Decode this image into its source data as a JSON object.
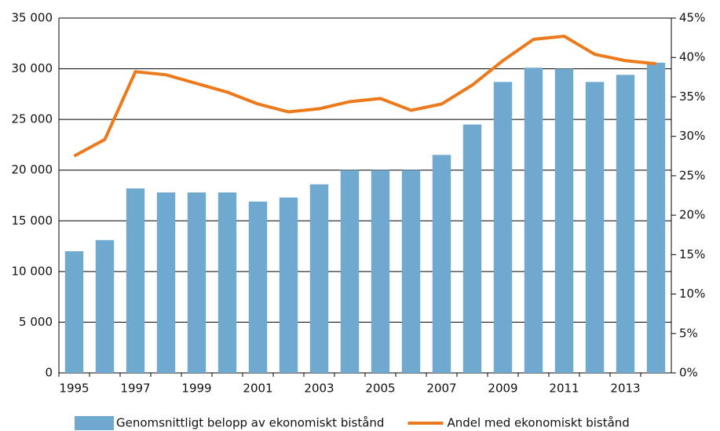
{
  "chart_data": {
    "type": "bar-line",
    "categories": [
      "1995",
      null,
      "1997",
      null,
      "1999",
      null,
      "2001",
      null,
      "2003",
      null,
      "2005",
      null,
      "2007",
      null,
      "2009",
      null,
      "2011",
      null,
      "2013",
      null
    ],
    "series": [
      {
        "name": "Genomsnittligt belopp av ekonomiskt bistånd",
        "type": "bar",
        "color": "#70a9cf",
        "values": [
          12000,
          13100,
          18200,
          17800,
          17800,
          17800,
          16900,
          17300,
          18600,
          20000,
          20000,
          20000,
          21500,
          24500,
          28700,
          30100,
          30000,
          28700,
          29400,
          30600
        ]
      },
      {
        "name": "Andel med ekonomiskt bistånd",
        "type": "line",
        "axis": "y2",
        "color": "#ec7a1c",
        "values": [
          27.5,
          29.6,
          38.2,
          37.8,
          36.7,
          35.6,
          34.1,
          33.1,
          33.5,
          34.4,
          34.8,
          33.3,
          34.1,
          36.5,
          39.6,
          42.3,
          42.7,
          40.4,
          39.6,
          39.2
        ]
      }
    ],
    "ylim": [
      0,
      35000
    ],
    "yticks": [
      {
        "value": 0,
        "label": "0"
      },
      {
        "value": 5000,
        "label": "5 000"
      },
      {
        "value": 10000,
        "label": "10 000"
      },
      {
        "value": 15000,
        "label": "15 000"
      },
      {
        "value": 20000,
        "label": "20 000"
      },
      {
        "value": 25000,
        "label": "25 000"
      },
      {
        "value": 30000,
        "label": "30 000"
      },
      {
        "value": 35000,
        "label": "35 000"
      }
    ],
    "y2lim": [
      0,
      45
    ],
    "y2ticks": [
      {
        "value": 0,
        "label": "0%"
      },
      {
        "value": 5,
        "label": "5%"
      },
      {
        "value": 10,
        "label": "10%"
      },
      {
        "value": 15,
        "label": "15%"
      },
      {
        "value": 20,
        "label": "20%"
      },
      {
        "value": 25,
        "label": "25%"
      },
      {
        "value": 30,
        "label": "30%"
      },
      {
        "value": 35,
        "label": "35%"
      },
      {
        "value": 40,
        "label": "40%"
      },
      {
        "value": 45,
        "label": "45%"
      }
    ],
    "grid": true,
    "legend": "bottom"
  }
}
